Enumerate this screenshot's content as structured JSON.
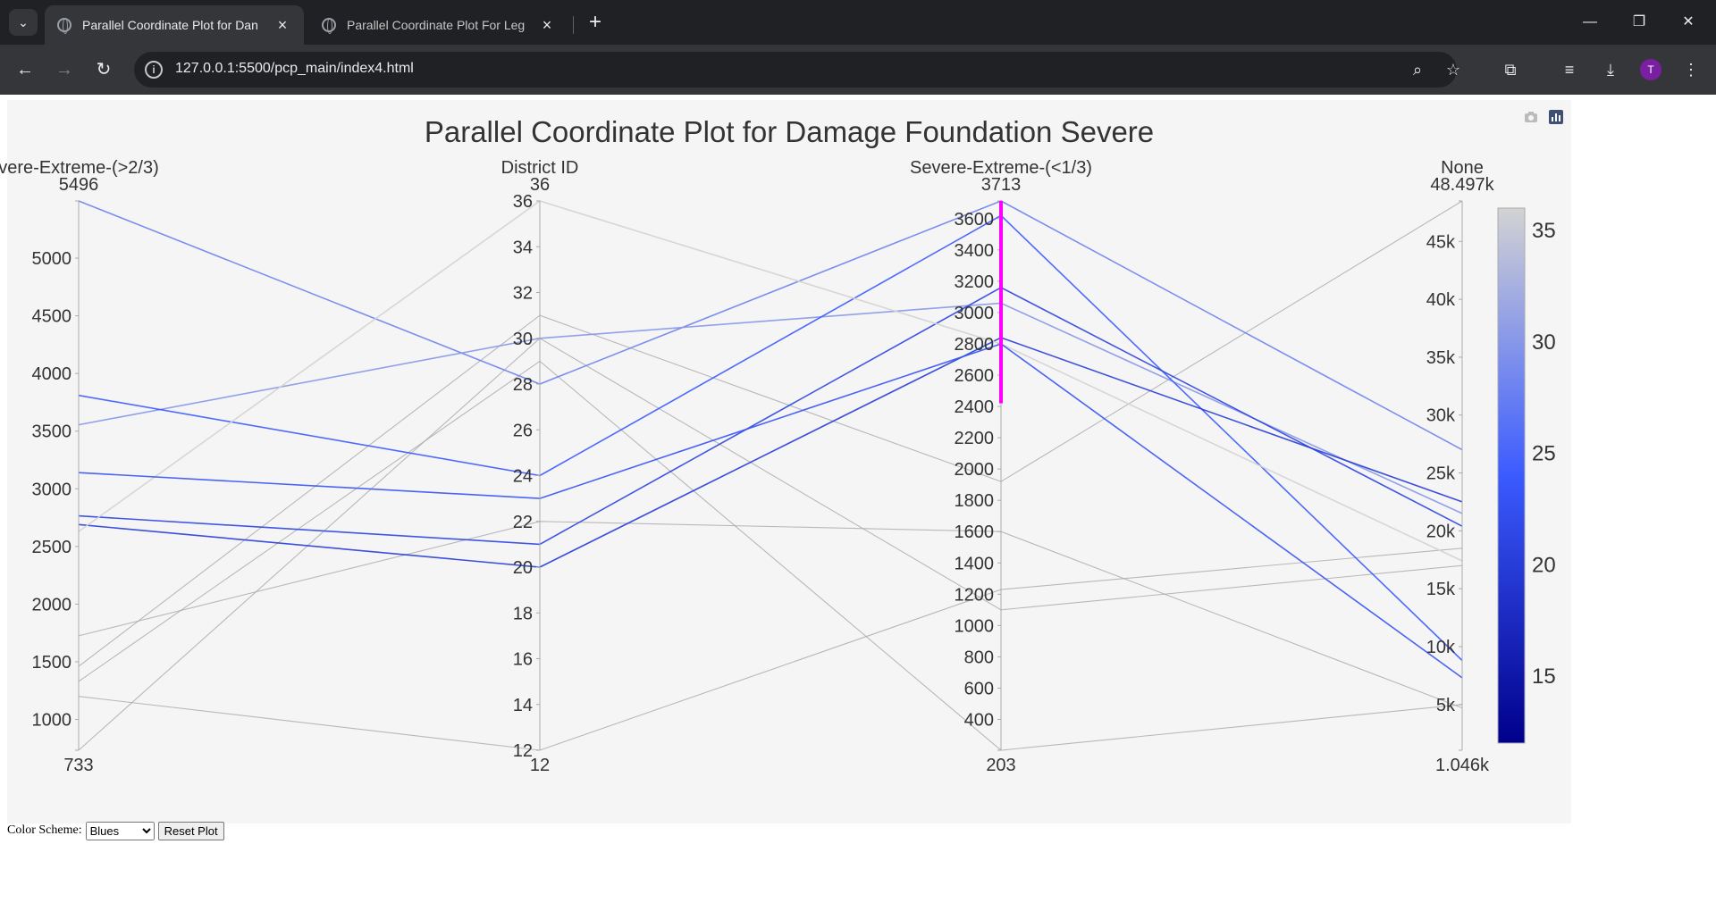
{
  "browser": {
    "tabs": [
      {
        "title": "Parallel Coordinate Plot for Dan"
      },
      {
        "title": "Parallel Coordinate Plot For Leg"
      }
    ],
    "url": "127.0.0.1:5500/pcp_main/index4.html",
    "profile_initial": "T"
  },
  "controls": {
    "color_scheme_label": "Color Scheme:",
    "color_scheme_value": "Blues",
    "reset_label": "Reset Plot"
  },
  "chart_data": {
    "type": "parallel_coordinates",
    "title": "Parallel Coordinate Plot for Damage Foundation Severe",
    "color_by": "District ID",
    "colorscale": {
      "range": [
        12,
        36
      ],
      "ticks": [
        "35",
        "30",
        "25",
        "20",
        "15"
      ],
      "colors": [
        "#00008b",
        "#3b5bff",
        "#d3d3d3"
      ]
    },
    "dimensions": [
      {
        "label": "vere-Extreme-(>2/3)",
        "range": [
          733,
          5496
        ],
        "min_label": "733",
        "max_label": "5496",
        "ticks": [
          {
            "v": 1000,
            "t": "1000"
          },
          {
            "v": 1500,
            "t": "1500"
          },
          {
            "v": 2000,
            "t": "2000"
          },
          {
            "v": 2500,
            "t": "2500"
          },
          {
            "v": 3000,
            "t": "3000"
          },
          {
            "v": 3500,
            "t": "3500"
          },
          {
            "v": 4000,
            "t": "4000"
          },
          {
            "v": 4500,
            "t": "4500"
          },
          {
            "v": 5000,
            "t": "5000"
          }
        ]
      },
      {
        "label": "District ID",
        "range": [
          12,
          36
        ],
        "min_label": "12",
        "max_label": "36",
        "ticks": [
          {
            "v": 12,
            "t": "12"
          },
          {
            "v": 14,
            "t": "14"
          },
          {
            "v": 16,
            "t": "16"
          },
          {
            "v": 18,
            "t": "18"
          },
          {
            "v": 20,
            "t": "20"
          },
          {
            "v": 22,
            "t": "22"
          },
          {
            "v": 24,
            "t": "24"
          },
          {
            "v": 26,
            "t": "26"
          },
          {
            "v": 28,
            "t": "28"
          },
          {
            "v": 30,
            "t": "30"
          },
          {
            "v": 32,
            "t": "32"
          },
          {
            "v": 34,
            "t": "34"
          },
          {
            "v": 36,
            "t": "36"
          }
        ]
      },
      {
        "label": "Severe-Extreme-(<1/3)",
        "range": [
          203,
          3713
        ],
        "min_label": "203",
        "max_label": "3713",
        "constraint": [
          2420,
          3713
        ],
        "ticks": [
          {
            "v": 400,
            "t": "400"
          },
          {
            "v": 600,
            "t": "600"
          },
          {
            "v": 800,
            "t": "800"
          },
          {
            "v": 1000,
            "t": "1000"
          },
          {
            "v": 1200,
            "t": "1200"
          },
          {
            "v": 1400,
            "t": "1400"
          },
          {
            "v": 1600,
            "t": "1600"
          },
          {
            "v": 1800,
            "t": "1800"
          },
          {
            "v": 2000,
            "t": "2000"
          },
          {
            "v": 2200,
            "t": "2200"
          },
          {
            "v": 2400,
            "t": "2400"
          },
          {
            "v": 2600,
            "t": "2600"
          },
          {
            "v": 2800,
            "t": "2800"
          },
          {
            "v": 3000,
            "t": "3000"
          },
          {
            "v": 3200,
            "t": "3200"
          },
          {
            "v": 3400,
            "t": "3400"
          },
          {
            "v": 3600,
            "t": "3600"
          }
        ]
      },
      {
        "label": "None",
        "range": [
          1046,
          48497
        ],
        "min_label": "1.046k",
        "max_label": "48.497k",
        "ticks": [
          {
            "v": 5000,
            "t": "5k"
          },
          {
            "v": 10000,
            "t": "10k"
          },
          {
            "v": 15000,
            "t": "15k"
          },
          {
            "v": 20000,
            "t": "20k"
          },
          {
            "v": 25000,
            "t": "25k"
          },
          {
            "v": 30000,
            "t": "30k"
          },
          {
            "v": 35000,
            "t": "35k"
          },
          {
            "v": 40000,
            "t": "40k"
          },
          {
            "v": 45000,
            "t": "45k"
          }
        ]
      }
    ],
    "rows": [
      [
        5496,
        28,
        3713,
        27000
      ],
      [
        3555,
        30,
        3060,
        21500
      ],
      [
        3810,
        24,
        3620,
        8800
      ],
      [
        2765,
        21,
        3160,
        20400
      ],
      [
        2690,
        20,
        2840,
        22500
      ],
      [
        2630,
        36,
        2800,
        17400
      ],
      [
        3140,
        23,
        2800,
        7300
      ],
      [
        1725,
        22,
        1600,
        4700
      ],
      [
        1460,
        31,
        1920,
        48497
      ],
      [
        733,
        30,
        1100,
        17000
      ],
      [
        1200,
        12,
        1230,
        18500
      ],
      [
        1330,
        29,
        203,
        5000
      ]
    ],
    "inactive_range_note": "lines outside the constraint on Severe-Extreme-(<1/3) are drawn grey"
  }
}
